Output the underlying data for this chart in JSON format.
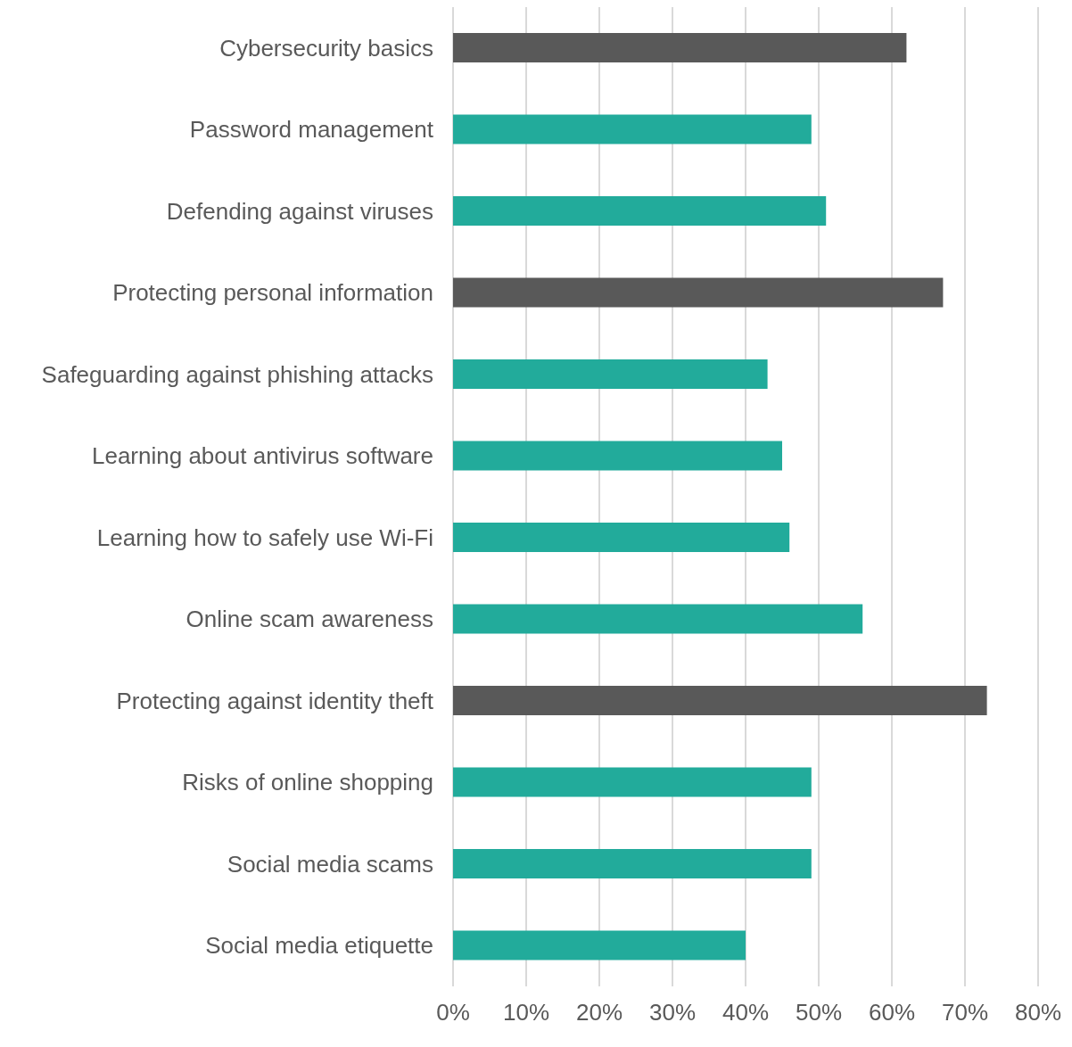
{
  "chart_data": {
    "type": "bar",
    "orientation": "horizontal",
    "categories": [
      "Cybersecurity basics",
      "Password management",
      "Defending against viruses",
      "Protecting personal information",
      "Safeguarding against phishing attacks",
      "Learning about antivirus software",
      "Learning how to safely use Wi-Fi",
      "Online scam awareness",
      "Protecting against identity theft",
      "Risks of online shopping",
      "Social media scams",
      "Social media etiquette"
    ],
    "values": [
      62,
      49,
      51,
      67,
      43,
      45,
      46,
      56,
      73,
      49,
      49,
      40
    ],
    "colors": [
      "#595959",
      "#22ab9b",
      "#22ab9b",
      "#595959",
      "#22ab9b",
      "#22ab9b",
      "#22ab9b",
      "#22ab9b",
      "#595959",
      "#22ab9b",
      "#22ab9b",
      "#22ab9b"
    ],
    "xlim": [
      0,
      80
    ],
    "xticks": [
      {
        "value": 0,
        "label": "0%"
      },
      {
        "value": 10,
        "label": "10%"
      },
      {
        "value": 20,
        "label": "20%"
      },
      {
        "value": 30,
        "label": "30%"
      },
      {
        "value": 40,
        "label": "40%"
      },
      {
        "value": 50,
        "label": "50%"
      },
      {
        "value": 60,
        "label": "60%"
      },
      {
        "value": 70,
        "label": "70%"
      },
      {
        "value": 80,
        "label": "80%"
      }
    ],
    "grid": "x"
  }
}
